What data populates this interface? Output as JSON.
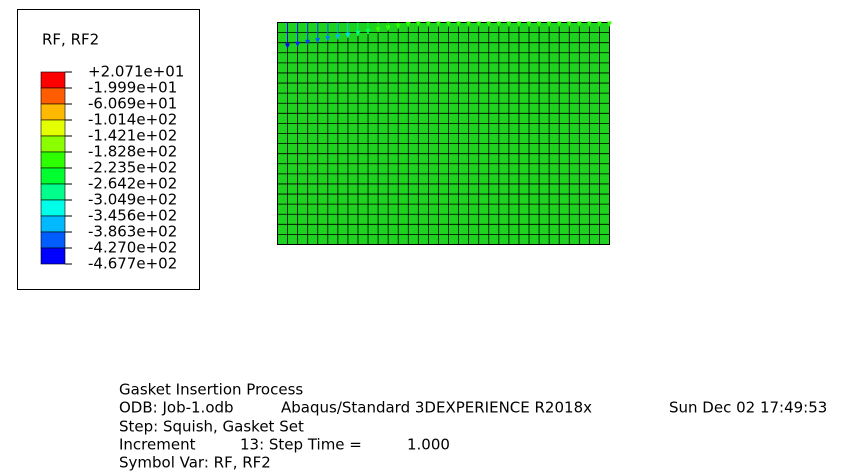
{
  "legend": {
    "title": "RF, RF2",
    "labels": [
      "+2.071e+01",
      "-1.999e+01",
      "-6.069e+01",
      "-1.014e+02",
      "-1.421e+02",
      "-1.828e+02",
      "-2.235e+02",
      "-2.642e+02",
      "-3.049e+02",
      "-3.456e+02",
      "-3.863e+02",
      "-4.270e+02",
      "-4.677e+02"
    ],
    "colors": [
      "#ff0000",
      "#ff5d00",
      "#ffb900",
      "#e3ff00",
      "#8bff00",
      "#2eff00",
      "#00ff2e",
      "#00ff8b",
      "#00ffe8",
      "#00b9ff",
      "#005dff",
      "#0000ff"
    ]
  },
  "info": {
    "title": "Gasket Insertion Process",
    "odb": "ODB: Job-1.odb",
    "solver": "Abaqus/Standard 3DEXPERIENCE R2018x",
    "date": "Sun Dec 02 17:49:53",
    "step": "Step: Squish, Gasket Set",
    "increment": "Increment",
    "increment_value": "13: Step Time =",
    "step_time": "1.000",
    "symbol_var": "Symbol Var: RF, RF2"
  }
}
